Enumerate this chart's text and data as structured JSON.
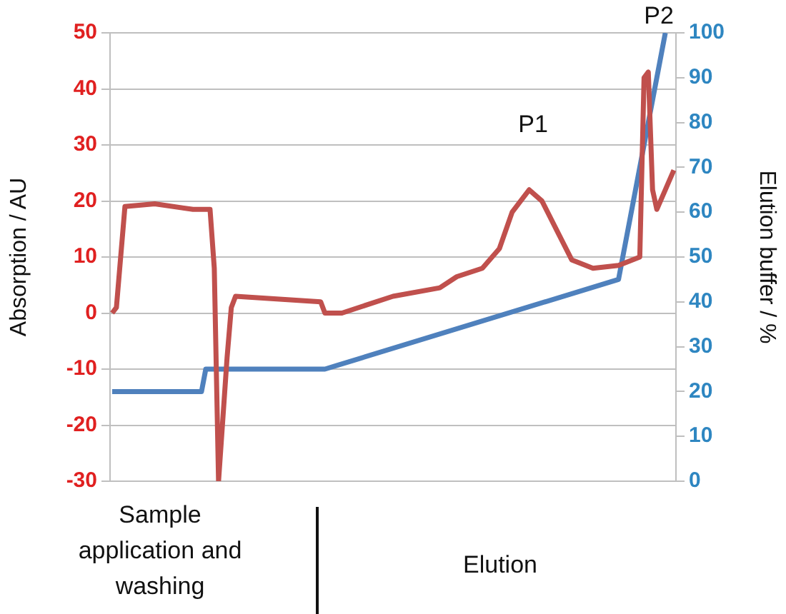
{
  "chart_data": {
    "type": "line",
    "categories": [
      null,
      null,
      null,
      null,
      null,
      null,
      null,
      null,
      null,
      null,
      null,
      null,
      null,
      null,
      null,
      null,
      null,
      null,
      null,
      null,
      null,
      null,
      null,
      null,
      null,
      null,
      null,
      null,
      null,
      null,
      null,
      null,
      null,
      null,
      null,
      null,
      null,
      null,
      null,
      null,
      null,
      null,
      null,
      null,
      null,
      null,
      null,
      null,
      null,
      null,
      null,
      null,
      null,
      null,
      null,
      null,
      null,
      null,
      null,
      null,
      null,
      null,
      null,
      null,
      null,
      null,
      null,
      null,
      null,
      null,
      null,
      null,
      null,
      null,
      null,
      null,
      null,
      null,
      null,
      null,
      null,
      null,
      null,
      null,
      null,
      null,
      null,
      null,
      null,
      null,
      null,
      null,
      null,
      null,
      null,
      null,
      null,
      null,
      null,
      null,
      null,
      null,
      null,
      null,
      null,
      null,
      null,
      null,
      null,
      null,
      null,
      null,
      null,
      null,
      null,
      null,
      null,
      null,
      null,
      null,
      null,
      null,
      null,
      null,
      null,
      null,
      null,
      null,
      null,
      null,
      null,
      null,
      null
    ],
    "ylabel": "Absorption / AU",
    "y2label": "Elution buffer / %",
    "ylim": [
      -30,
      50
    ],
    "yticks": [
      -30,
      -20,
      -10,
      0,
      10,
      20,
      30,
      40,
      50
    ],
    "y2lim": [
      0,
      100
    ],
    "y2ticks": [
      0,
      10,
      20,
      30,
      40,
      50,
      60,
      70,
      80,
      90,
      100
    ],
    "grid": "y",
    "marker": "none",
    "annotations": [
      "P1",
      "P2",
      "Sample application and washing",
      "Elution"
    ],
    "series": [
      {
        "color": "#c0504d",
        "values": [
          0,
          1,
          null,
          19,
          null,
          null,
          null,
          null,
          null,
          null,
          19.5,
          null,
          null,
          null,
          null,
          null,
          null,
          null,
          null,
          18.5,
          null,
          null,
          null,
          18.5,
          8,
          -30,
          null,
          -8,
          1,
          3,
          null,
          null,
          null,
          null,
          null,
          null,
          null,
          null,
          null,
          null,
          null,
          null,
          null,
          null,
          null,
          null,
          null,
          null,
          null,
          2,
          0,
          null,
          null,
          null,
          0,
          null,
          null,
          null,
          null,
          null,
          null,
          null,
          null,
          null,
          null,
          null,
          3,
          null,
          null,
          null,
          null,
          null,
          null,
          null,
          null,
          null,
          null,
          4.5,
          null,
          null,
          null,
          6.5,
          null,
          null,
          null,
          null,
          null,
          8,
          null,
          null,
          null,
          11.5,
          null,
          null,
          18,
          null,
          null,
          null,
          22,
          null,
          null,
          20,
          null,
          null,
          null,
          14,
          null,
          null,
          9.5,
          null,
          null,
          null,
          null,
          8,
          null,
          null,
          null,
          null,
          null,
          8.5,
          null,
          null,
          null,
          null,
          10,
          42,
          43,
          22,
          18.5,
          null,
          22,
          null,
          25.5
        ]
      },
      {
        "color": "#4f81bd",
        "axis": "y2",
        "values": [
          20,
          null,
          null,
          null,
          null,
          null,
          null,
          null,
          null,
          null,
          null,
          null,
          null,
          null,
          null,
          null,
          null,
          null,
          null,
          null,
          null,
          20,
          25,
          null,
          null,
          null,
          null,
          null,
          null,
          null,
          null,
          null,
          null,
          null,
          null,
          null,
          null,
          null,
          null,
          null,
          null,
          null,
          null,
          null,
          null,
          null,
          null,
          null,
          null,
          null,
          25,
          null,
          null,
          null,
          null,
          null,
          null,
          null,
          null,
          null,
          null,
          null,
          null,
          null,
          null,
          null,
          null,
          null,
          null,
          null,
          null,
          null,
          null,
          null,
          null,
          null,
          null,
          null,
          null,
          null,
          null,
          null,
          null,
          null,
          null,
          null,
          null,
          null,
          null,
          null,
          null,
          null,
          null,
          null,
          null,
          null,
          null,
          null,
          null,
          null,
          null,
          null,
          null,
          null,
          null,
          null,
          null,
          null,
          null,
          null,
          null,
          null,
          null,
          null,
          null,
          null,
          null,
          null,
          null,
          45,
          null,
          null,
          null,
          null,
          null,
          null,
          null,
          null,
          null,
          null,
          100,
          null,
          null
        ]
      }
    ]
  }
}
